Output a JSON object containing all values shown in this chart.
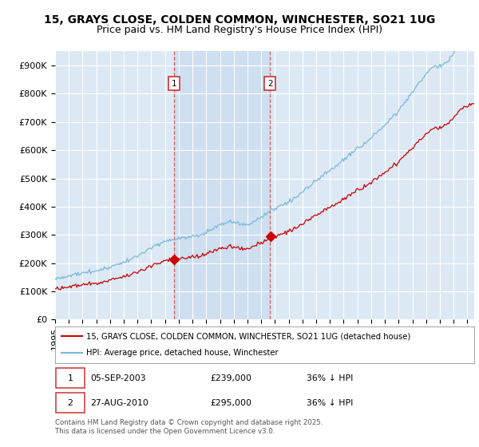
{
  "title_line1": "15, GRAYS CLOSE, COLDEN COMMON, WINCHESTER, SO21 1UG",
  "title_line2": "Price paid vs. HM Land Registry's House Price Index (HPI)",
  "ylabel_ticks": [
    "£0",
    "£100K",
    "£200K",
    "£300K",
    "£400K",
    "£500K",
    "£600K",
    "£700K",
    "£800K",
    "£900K"
  ],
  "ytick_vals": [
    0,
    100000,
    200000,
    300000,
    400000,
    500000,
    600000,
    700000,
    800000,
    900000
  ],
  "ylim": [
    0,
    950000
  ],
  "xlim_start": 1995.0,
  "xlim_end": 2025.5,
  "hpi_color": "#7ab8d9",
  "price_color": "#cc0000",
  "sale1_date_num": 2003.68,
  "sale1_price": 239000,
  "sale2_date_num": 2010.65,
  "sale2_price": 295000,
  "legend_property": "15, GRAYS CLOSE, COLDEN COMMON, WINCHESTER, SO21 1UG (detached house)",
  "legend_hpi": "HPI: Average price, detached house, Winchester",
  "footnote": "Contains HM Land Registry data © Crown copyright and database right 2025.\nThis data is licensed under the Open Government Licence v3.0.",
  "background_color": "#ffffff",
  "plot_bg_color": "#dce9f5",
  "grid_color": "#ffffff",
  "vline_color": "#e06060",
  "shade_color": "#c8dcee",
  "title_fontsize": 10,
  "subtitle_fontsize": 9,
  "tick_fontsize": 8
}
